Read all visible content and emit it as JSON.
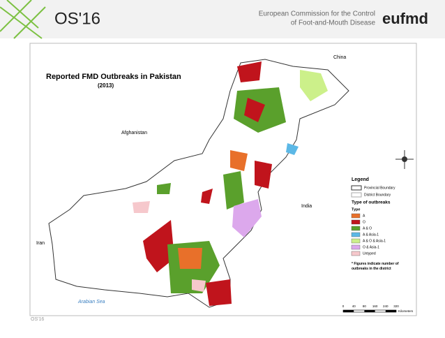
{
  "header": {
    "brand": "OS'16",
    "org_line1": "European Commission for the Control",
    "org_line2": "of Foot-and-Mouth Disease",
    "logo": "eufmd"
  },
  "map": {
    "title": "Reported FMD Outbreaks in Pakistan",
    "subtitle": "(2013)",
    "places": [
      {
        "label": "China"
      },
      {
        "label": "Afghanistan"
      },
      {
        "label": "India"
      },
      {
        "label": "Iran"
      },
      {
        "label": "Arabian Sea"
      }
    ],
    "legend": {
      "title": "Legend",
      "boundaries": [
        "Provincial Boundary",
        "District Boundary"
      ],
      "heading": "Type of outbreaks",
      "subheading": "Type",
      "items": [
        {
          "label": "A",
          "color": "#e8702a"
        },
        {
          "label": "O",
          "color": "#c0141c"
        },
        {
          "label": "A & O",
          "color": "#5aa02c"
        },
        {
          "label": "A & Asia-1",
          "color": "#5cb8e6"
        },
        {
          "label": "A & O & Asia-1",
          "color": "#ccf08a"
        },
        {
          "label": "O & Asia-1",
          "color": "#dca8ec"
        },
        {
          "label": "Untyped",
          "color": "#f6c8cc"
        }
      ],
      "note": "* Figures indicate number of outbreaks in the district"
    },
    "scale": {
      "labels": [
        "0",
        "40",
        "80",
        "160",
        "240",
        "320"
      ],
      "unit": "Kilometers"
    }
  },
  "footer": "OS'16"
}
